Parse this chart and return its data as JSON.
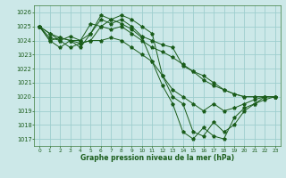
{
  "title": "Graphe pression niveau de la mer (hPa)",
  "background_color": "#cce8e8",
  "grid_color": "#9ecece",
  "line_color": "#1a5c1a",
  "xlim": [
    -0.5,
    23.5
  ],
  "ylim": [
    1016.5,
    1026.5
  ],
  "yticks": [
    1017,
    1018,
    1019,
    1020,
    1021,
    1022,
    1023,
    1024,
    1025,
    1026
  ],
  "xticks": [
    0,
    1,
    2,
    3,
    4,
    5,
    6,
    7,
    8,
    9,
    10,
    11,
    12,
    13,
    14,
    15,
    16,
    17,
    18,
    19,
    20,
    21,
    22,
    23
  ],
  "series": [
    [
      1025.0,
      1024.2,
      1024.0,
      1024.3,
      1024.0,
      1024.5,
      1025.5,
      1025.2,
      1025.5,
      1025.0,
      1024.3,
      1024.0,
      1023.7,
      1023.5,
      1022.2,
      1021.8,
      1021.5,
      1021.0,
      1020.5,
      1020.2,
      1020.0,
      1020.0,
      1020.0,
      1020.0
    ],
    [
      1025.0,
      1024.5,
      1024.2,
      1024.0,
      1023.8,
      1024.0,
      1025.0,
      1024.8,
      1025.0,
      1024.5,
      1024.0,
      1023.5,
      1023.2,
      1022.8,
      1022.3,
      1021.8,
      1021.2,
      1020.8,
      1020.5,
      1020.2,
      1020.0,
      1020.0,
      1020.0,
      1020.0
    ],
    [
      1025.0,
      1024.5,
      1024.0,
      1023.5,
      1023.8,
      1024.0,
      1024.0,
      1024.2,
      1024.0,
      1023.5,
      1023.0,
      1022.5,
      1021.5,
      1020.5,
      1020.0,
      1019.5,
      1019.0,
      1019.5,
      1019.0,
      1019.2,
      1019.5,
      1019.8,
      1020.0,
      1020.0
    ],
    [
      1025.0,
      1024.0,
      1024.2,
      1024.0,
      1023.5,
      1024.5,
      1025.8,
      1025.5,
      1025.8,
      1025.5,
      1025.0,
      1024.5,
      1021.5,
      1020.0,
      1019.5,
      1017.5,
      1017.2,
      1018.2,
      1017.5,
      1018.0,
      1019.0,
      1019.5,
      1019.8,
      1020.0
    ],
    [
      1025.0,
      1024.0,
      1023.5,
      1024.0,
      1024.0,
      1025.2,
      1025.0,
      1025.5,
      1025.2,
      1024.8,
      1024.2,
      1022.5,
      1020.8,
      1019.5,
      1017.5,
      1017.0,
      1017.8,
      1017.2,
      1017.0,
      1018.5,
      1019.2,
      1019.5,
      1020.0,
      1020.0
    ]
  ]
}
